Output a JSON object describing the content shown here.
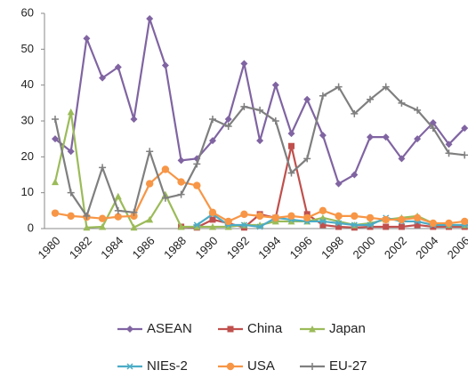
{
  "chart_data": {
    "type": "line",
    "categories": [
      "1980",
      null,
      "1982",
      null,
      "1984",
      null,
      "1986",
      null,
      "1988",
      null,
      "1990",
      null,
      "1992",
      null,
      "1994",
      null,
      "1996",
      null,
      "1998",
      null,
      "2000",
      null,
      "2002",
      null,
      "2004",
      null,
      "2006"
    ],
    "ylim": [
      0,
      60
    ],
    "yticks": [
      0,
      10,
      20,
      30,
      40,
      50,
      60
    ],
    "legend": "bottom",
    "series": [
      {
        "name": "ASEAN",
        "color": "#8064a2",
        "marker": "diamond",
        "values": [
          25,
          21.5,
          53,
          42,
          45,
          30.5,
          58.5,
          45.5,
          19,
          19.5,
          24.5,
          30.5,
          46,
          24.5,
          40,
          26.5,
          36,
          26,
          12.5,
          15,
          25.5,
          25.5,
          19.5,
          25,
          29.5,
          23.5,
          28
        ]
      },
      {
        "name": "China",
        "color": "#c0504d",
        "marker": "square",
        "values": [
          null,
          null,
          null,
          null,
          null,
          null,
          null,
          null,
          0.5,
          0.3,
          2.5,
          1.5,
          0.3,
          4,
          3,
          23,
          4,
          1,
          0.5,
          0.3,
          0.5,
          0.5,
          0.5,
          1,
          0.5,
          0.5,
          0.5
        ]
      },
      {
        "name": "Japan",
        "color": "#9bbb59",
        "marker": "triangle",
        "values": [
          13,
          32.5,
          0.3,
          0.5,
          9,
          0.3,
          2.5,
          9.5,
          0.5,
          0.5,
          0.5,
          0.5,
          1,
          1,
          2,
          2,
          2,
          3,
          2,
          1,
          1.5,
          2.5,
          3,
          3.5,
          1.5,
          1,
          1
        ]
      },
      {
        "name": "NIEs-2",
        "color": "#4bacc6",
        "marker": "asterisk",
        "values": [
          null,
          null,
          null,
          null,
          null,
          null,
          null,
          null,
          null,
          1,
          4,
          1,
          1,
          0.5,
          3,
          2.5,
          2,
          2,
          1.5,
          1,
          1,
          3,
          2,
          2,
          1,
          1,
          1
        ]
      },
      {
        "name": "USA",
        "color": "#f79646",
        "marker": "circle",
        "values": [
          4.3,
          3.5,
          3.2,
          2.8,
          3.3,
          3.5,
          12.5,
          16.5,
          13,
          12,
          4.5,
          2,
          4,
          3.5,
          3,
          3.5,
          3,
          5,
          3.5,
          3.5,
          3,
          2.5,
          2.5,
          3,
          1.5,
          1.5,
          2
        ]
      },
      {
        "name": "EU-27",
        "color": "#7f7f7f",
        "marker": "plus",
        "values": [
          30.5,
          10,
          3.5,
          17,
          5,
          4.5,
          21.5,
          8.5,
          9.5,
          18,
          30.5,
          28.5,
          34,
          33,
          30,
          15.5,
          19.5,
          37,
          39.5,
          32,
          36,
          39.5,
          35,
          33,
          28,
          21,
          20.5
        ]
      }
    ]
  }
}
